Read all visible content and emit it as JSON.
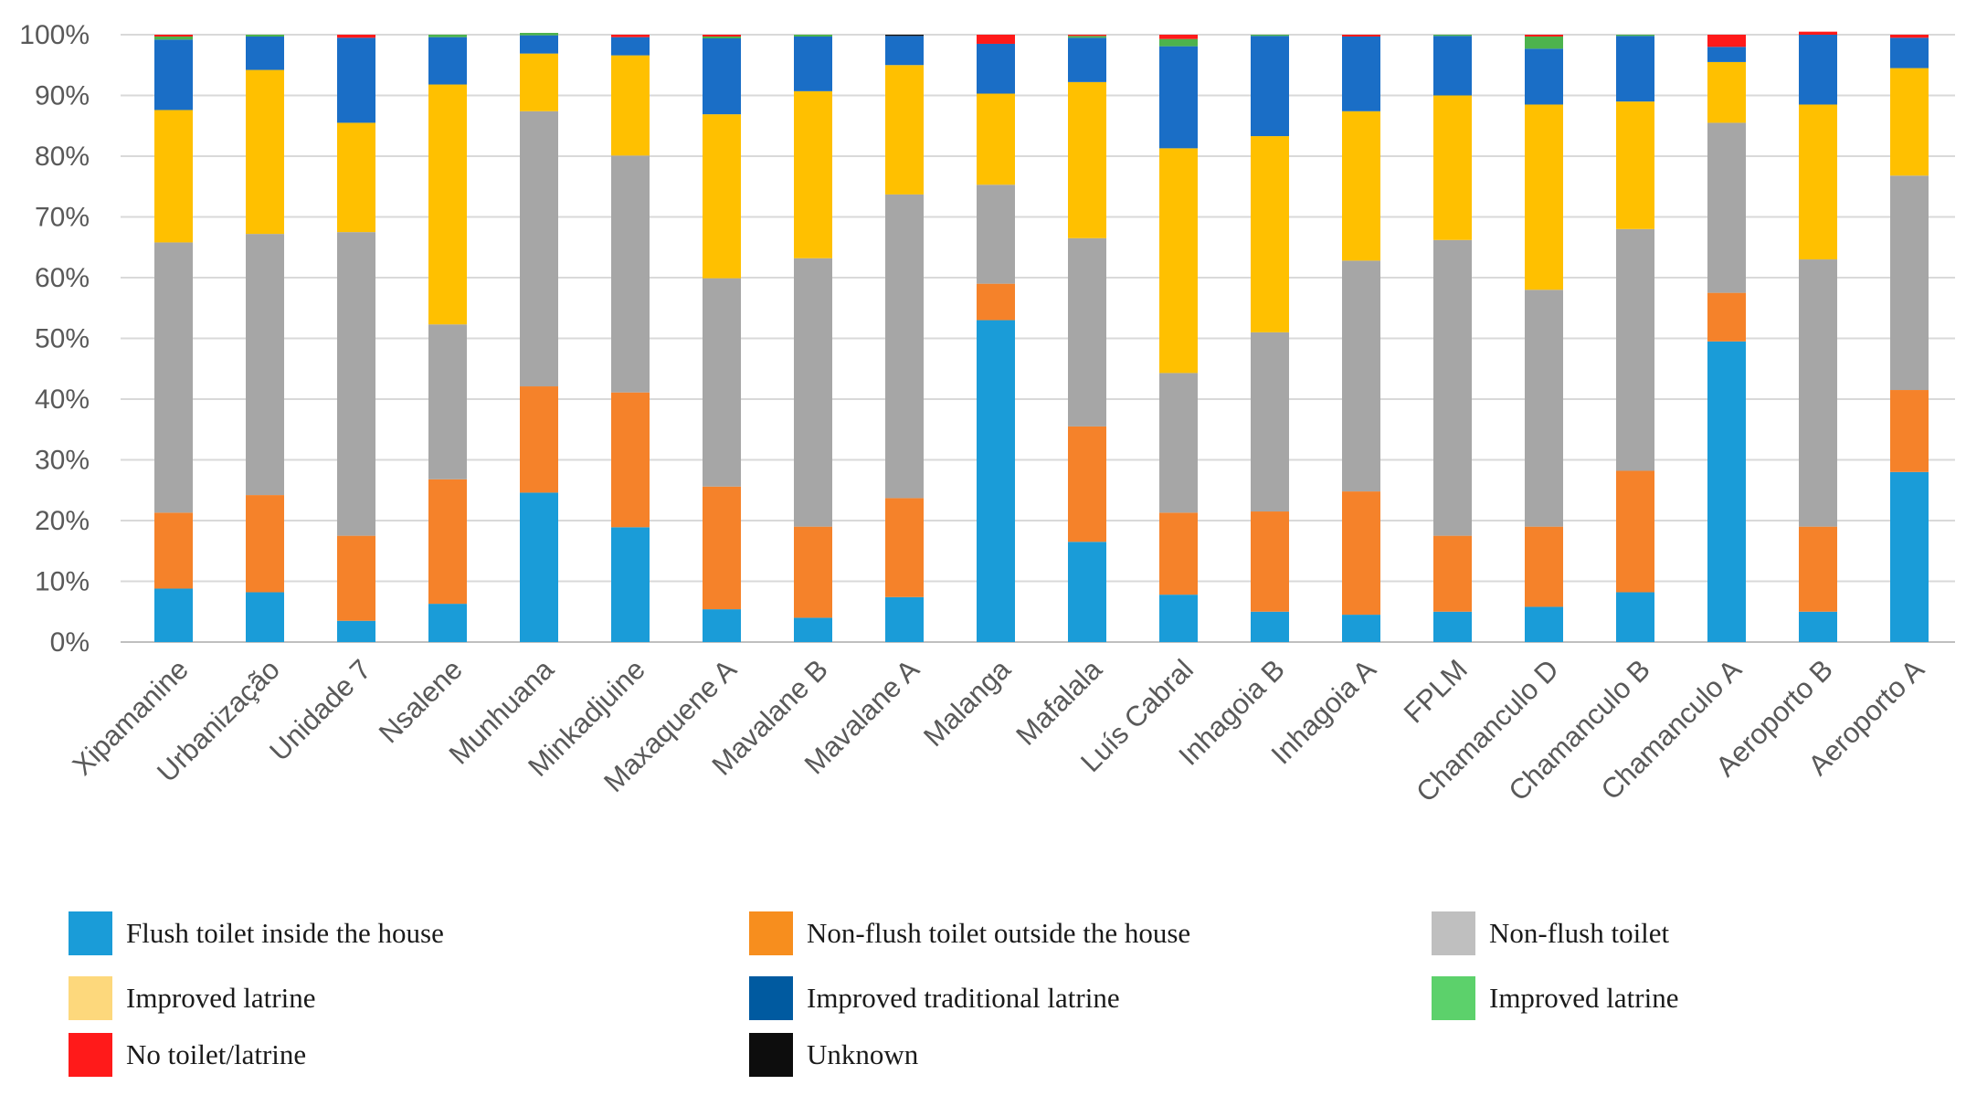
{
  "chart_data": {
    "type": "bar",
    "stacked": true,
    "normalized": true,
    "title": "",
    "xlabel": "",
    "ylabel": "",
    "ylim": [
      0,
      100
    ],
    "y_ticks": [
      "0%",
      "10%",
      "20%",
      "30%",
      "40%",
      "50%",
      "60%",
      "70%",
      "80%",
      "90%",
      "100%"
    ],
    "grid": true,
    "legend_position": "bottom",
    "categories": [
      "Xipamanine",
      "Urbanização",
      "Unidade 7",
      "Nsalene",
      "Munhuana",
      "Minkadjuine",
      "Maxaquene A",
      "Mavalane B",
      "Mavalane A",
      "Malanga",
      "Mafalala",
      "Luís Cabral",
      "Inhagoia B",
      "Inhagoia A",
      "FPLM",
      "Chamanculo D",
      "Chamanculo B",
      "Chamanculo A",
      "Aeroporto B",
      "Aeroporto A"
    ],
    "series": [
      {
        "name": "Flush toilet inside the house",
        "color": "#1a9cd8",
        "legend_color": "#1a9cd8",
        "values": [
          8.8,
          8.2,
          3.5,
          6.3,
          24.6,
          18.9,
          5.4,
          4,
          7.4,
          53,
          16.5,
          7.8,
          5,
          4.5,
          5,
          5.8,
          8.2,
          49.5,
          5,
          28
        ]
      },
      {
        "name": "Non-flush toilet outside the house",
        "color": "#f5822a",
        "legend_color": "#f78e1e",
        "values": [
          12.5,
          16,
          14,
          20.5,
          17.5,
          22.2,
          20.2,
          15,
          16.3,
          6,
          19,
          13.5,
          16.5,
          20.3,
          12.5,
          13.2,
          20,
          8,
          14,
          13.5
        ]
      },
      {
        "name": "Non-flush toilet",
        "color": "#a6a6a6",
        "legend_color": "#bfbfbf",
        "values": [
          44.5,
          43,
          50,
          25.5,
          45.3,
          39,
          34.3,
          44.2,
          50,
          16.3,
          31,
          23,
          29.5,
          38,
          48.7,
          39,
          39.8,
          28,
          44,
          35.3
        ]
      },
      {
        "name": "Improved latrine",
        "color": "#ffc000",
        "legend_color": "#fdd87c",
        "values": [
          21.8,
          27,
          18,
          39.5,
          9.5,
          16.5,
          27,
          27.5,
          21.3,
          15,
          25.7,
          37,
          32.3,
          24.6,
          23.8,
          30.5,
          21,
          10,
          25.5,
          17.7
        ]
      },
      {
        "name": "Improved traditional latrine",
        "color": "#1a6ec6",
        "legend_color": "#005aa0",
        "values": [
          11.6,
          5.5,
          14,
          7.8,
          3,
          3,
          12.5,
          9,
          4.8,
          8.2,
          7.3,
          16.8,
          16.5,
          12.3,
          9.8,
          9.2,
          10.8,
          2.5,
          11.5,
          5
        ]
      },
      {
        "name": "Improved latrine",
        "color": "#4db34d",
        "legend_color": "#5cd16b",
        "values": [
          0.5,
          0.3,
          0,
          0.4,
          0.4,
          0,
          0.3,
          0.3,
          0,
          0,
          0.3,
          1.2,
          0.2,
          0,
          0.2,
          2,
          0.2,
          0,
          0,
          0
        ]
      },
      {
        "name": "No toilet/latrine",
        "color": "#ff1a1a",
        "legend_color": "#ff1a1a",
        "values": [
          0.3,
          0,
          0.5,
          0,
          0,
          0.4,
          0.3,
          0,
          0,
          1.5,
          0.2,
          0.7,
          0,
          0.3,
          0,
          0.3,
          0,
          2,
          0.5,
          0.5
        ]
      },
      {
        "name": "Unknown",
        "color": "#111111",
        "legend_color": "#0d0d0d",
        "values": [
          0,
          0,
          0,
          0,
          0,
          0,
          0,
          0,
          0.2,
          0,
          0,
          0,
          0,
          0,
          0,
          0,
          0,
          0,
          0,
          0
        ]
      }
    ]
  }
}
